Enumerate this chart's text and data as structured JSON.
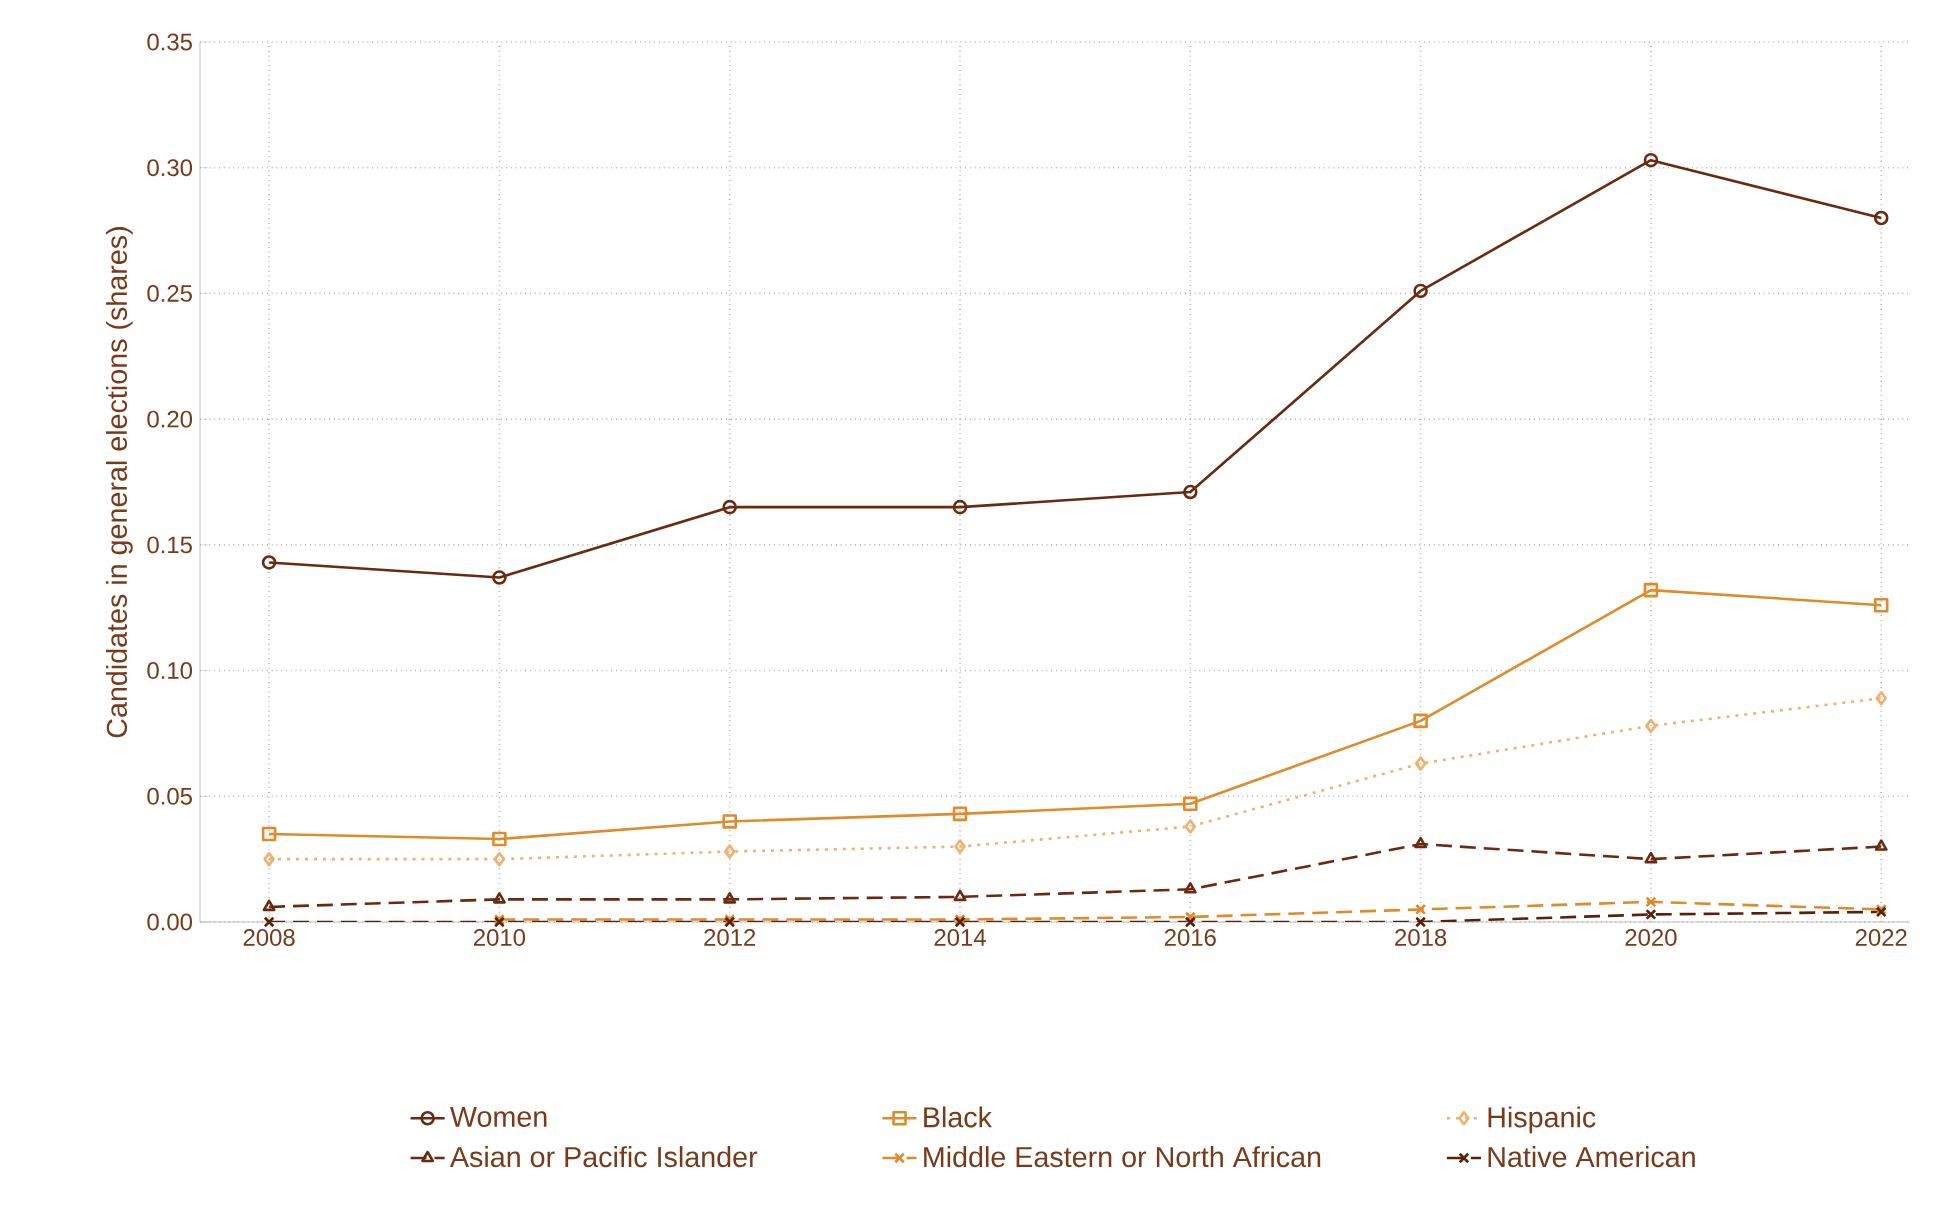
{
  "chart_data": {
    "type": "line",
    "ylabel": "Candidates in general elections (shares)",
    "x": [
      2008,
      2010,
      2012,
      2014,
      2016,
      2018,
      2020,
      2022
    ],
    "xlim": [
      2007.4,
      2022.25
    ],
    "xticks": [
      2008,
      2010,
      2012,
      2014,
      2016,
      2018,
      2020,
      2022
    ],
    "ylim": [
      0,
      0.35
    ],
    "yticks": [
      {
        "value": 0,
        "label": "0.00"
      },
      {
        "value": 0.05,
        "label": "0.05"
      },
      {
        "value": 0.1,
        "label": "0.10"
      },
      {
        "value": 0.15,
        "label": "0.15"
      },
      {
        "value": 0.2,
        "label": "0.20"
      },
      {
        "value": 0.25,
        "label": "0.25"
      },
      {
        "value": 0.3,
        "label": "0.30"
      },
      {
        "value": 0.35,
        "label": "0.35"
      }
    ],
    "grid": true,
    "legend": "bottom",
    "series": [
      {
        "name": "Women",
        "color": "#6b2a10",
        "marker": "circle",
        "line_style": "solid",
        "values": [
          0.143,
          0.137,
          0.165,
          0.165,
          0.171,
          0.251,
          0.303,
          0.28
        ]
      },
      {
        "name": "Black",
        "color": "#e08a2a",
        "marker": "square",
        "line_style": "solid",
        "values": [
          0.035,
          0.033,
          0.04,
          0.043,
          0.047,
          0.08,
          0.132,
          0.126
        ]
      },
      {
        "name": "Hispanic",
        "color": "#f0b070",
        "marker": "diamond",
        "line_style": "dotted",
        "values": [
          0.025,
          0.025,
          0.028,
          0.03,
          0.038,
          0.063,
          0.078,
          0.089
        ]
      },
      {
        "name": "Asian or Pacific Islander",
        "color": "#6b2a10",
        "marker": "triangle",
        "line_style": "dashed",
        "values": [
          0.006,
          0.009,
          0.009,
          0.01,
          0.013,
          0.031,
          0.025,
          0.03
        ]
      },
      {
        "name": "Middle Eastern or North African",
        "color": "#e08a2a",
        "marker": "cross",
        "line_style": "dashed",
        "values": [
          null,
          0.001,
          0.001,
          0.001,
          0.002,
          0.005,
          0.008,
          0.005
        ]
      },
      {
        "name": "Native American",
        "color": "#5a2008",
        "marker": "cross",
        "line_style": "dashed",
        "values": [
          0,
          0,
          0,
          0,
          0,
          0,
          0.003,
          0.004
        ]
      }
    ]
  }
}
